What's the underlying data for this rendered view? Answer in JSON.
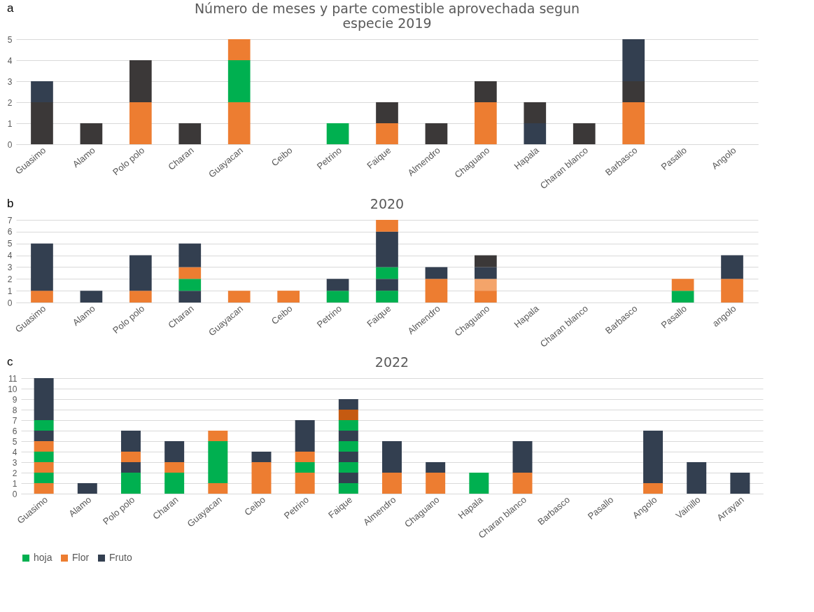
{
  "chart_data": [
    {
      "type": "bar",
      "stacked": true,
      "title": "Número de meses y parte comestible aprovechada segun especie 2019",
      "annotations": [
        "a"
      ],
      "categories": [
        "Guasimo",
        "Alamo",
        "Polo polo",
        "Charan",
        "Guayacan",
        "Ceibo",
        "Petrino",
        "Faique",
        "Almendro",
        "Chaguano",
        "Hapala",
        "Charan blanco",
        "Barbasco",
        "Pasallo",
        "Angolo"
      ],
      "ylim": [
        0,
        5
      ],
      "yticks": [
        0,
        1,
        2,
        3,
        4,
        5
      ],
      "grid": "y",
      "series": [
        {
          "color": "#3b3838",
          "values": [
            2,
            1,
            null,
            1,
            null,
            null,
            null,
            null,
            1,
            null,
            null,
            1,
            null,
            null,
            null
          ]
        },
        {
          "color": "#ed7d31",
          "values": [
            null,
            null,
            2,
            null,
            2,
            null,
            null,
            1,
            null,
            2,
            null,
            null,
            2,
            null,
            null
          ]
        },
        {
          "color": "#00b050",
          "values": [
            null,
            null,
            null,
            null,
            null,
            null,
            1,
            null,
            null,
            null,
            null,
            null,
            null,
            null,
            null
          ]
        },
        {
          "color": "#333f50",
          "values": [
            null,
            null,
            null,
            null,
            null,
            null,
            null,
            null,
            null,
            null,
            1,
            null,
            null,
            null,
            null
          ]
        },
        {
          "color": "#333f50",
          "values": [
            1,
            null,
            null,
            null,
            null,
            null,
            null,
            null,
            null,
            null,
            null,
            null,
            null,
            null,
            null
          ]
        },
        {
          "color": "#3b3838",
          "values": [
            null,
            null,
            2,
            null,
            null,
            null,
            null,
            1,
            null,
            1,
            1,
            null,
            1,
            null,
            null
          ]
        },
        {
          "color": "#00b050",
          "values": [
            null,
            null,
            null,
            null,
            2,
            null,
            null,
            null,
            null,
            null,
            null,
            null,
            null,
            null,
            null
          ]
        },
        {
          "color": "#ed7d31",
          "values": [
            null,
            null,
            null,
            null,
            1,
            null,
            null,
            null,
            null,
            null,
            null,
            null,
            null,
            null,
            null
          ]
        },
        {
          "color": "#333f50",
          "values": [
            null,
            null,
            null,
            null,
            null,
            null,
            null,
            null,
            null,
            null,
            null,
            null,
            2,
            null,
            null
          ]
        }
      ]
    },
    {
      "type": "bar",
      "stacked": true,
      "title": "2020",
      "annotations": [
        "b"
      ],
      "categories": [
        "Guasimo",
        "Alamo",
        "Polo polo",
        "Charan",
        "Guayacan",
        "Ceibo",
        "Petrino",
        "Faique",
        "Almendro",
        "Chaguano",
        "Hapala",
        "Charan blanco",
        "Barbasco",
        "Pasallo",
        "angolo"
      ],
      "ylim": [
        0,
        7
      ],
      "yticks": [
        0,
        1,
        2,
        3,
        4,
        5,
        6,
        7
      ],
      "grid": "y",
      "series": [
        {
          "color": "#ed7d31",
          "values": [
            1,
            null,
            1,
            null,
            1,
            1,
            null,
            null,
            2,
            1,
            null,
            null,
            null,
            null,
            2
          ]
        },
        {
          "color": "#333f50",
          "values": [
            null,
            1,
            null,
            1,
            null,
            null,
            null,
            null,
            null,
            null,
            null,
            null,
            null,
            null,
            null
          ]
        },
        {
          "color": "#00b050",
          "values": [
            null,
            null,
            null,
            null,
            null,
            null,
            1,
            1,
            null,
            null,
            null,
            null,
            null,
            1,
            null
          ]
        },
        {
          "color": "#333f50",
          "values": [
            4,
            null,
            3,
            null,
            null,
            null,
            1,
            1,
            1,
            null,
            null,
            null,
            null,
            null,
            2
          ]
        },
        {
          "color": "#00b050",
          "values": [
            null,
            null,
            null,
            1,
            null,
            null,
            null,
            null,
            null,
            null,
            null,
            null,
            null,
            null,
            null
          ]
        },
        {
          "color": "#f4a46a",
          "values": [
            null,
            null,
            null,
            null,
            null,
            null,
            null,
            null,
            null,
            1,
            null,
            null,
            null,
            null,
            null
          ]
        },
        {
          "color": "#ed7d31",
          "values": [
            null,
            null,
            null,
            null,
            null,
            null,
            null,
            null,
            null,
            null,
            null,
            null,
            null,
            1,
            null
          ]
        },
        {
          "color": "#ed7d31",
          "values": [
            null,
            null,
            null,
            1,
            null,
            null,
            null,
            null,
            null,
            null,
            null,
            null,
            null,
            null,
            null
          ]
        },
        {
          "color": "#00b050",
          "values": [
            null,
            null,
            null,
            null,
            null,
            null,
            null,
            1,
            null,
            null,
            null,
            null,
            null,
            null,
            null
          ]
        },
        {
          "color": "#333f50",
          "values": [
            null,
            null,
            null,
            null,
            null,
            null,
            null,
            null,
            null,
            1,
            null,
            null,
            null,
            null,
            null
          ]
        },
        {
          "color": "#333f50",
          "values": [
            null,
            null,
            null,
            2,
            null,
            null,
            null,
            3,
            null,
            null,
            null,
            null,
            null,
            null,
            null
          ]
        },
        {
          "color": "#3b3838",
          "values": [
            null,
            null,
            null,
            null,
            null,
            null,
            null,
            null,
            null,
            1,
            null,
            null,
            null,
            null,
            null
          ]
        },
        {
          "color": "#ed7d31",
          "values": [
            null,
            null,
            null,
            null,
            null,
            null,
            null,
            1,
            null,
            null,
            null,
            null,
            null,
            null,
            null
          ]
        }
      ]
    },
    {
      "type": "bar",
      "stacked": true,
      "title": "2022",
      "annotations": [
        "c"
      ],
      "legend": "bottom",
      "categories": [
        "Guasimo",
        "Alamo",
        "Polo polo",
        "Charan",
        "Guayacan",
        "Ceibo",
        "Petrino",
        "Faique",
        "Almendro",
        "Chaguano",
        "Hapala",
        "Charan blanco",
        "Barbasco",
        "Pasallo",
        "Angolo",
        "Vainillo",
        "Arrayan"
      ],
      "ylim": [
        0,
        11
      ],
      "yticks": [
        0,
        1,
        2,
        3,
        4,
        5,
        6,
        7,
        8,
        9,
        10,
        11
      ],
      "grid": "y",
      "series": [
        {
          "name": "hoja",
          "color": "#00b050",
          "values": [
            null,
            null,
            2,
            2,
            null,
            null,
            null,
            1,
            null,
            null,
            2,
            null,
            null,
            null,
            null,
            null,
            null
          ]
        },
        {
          "name": "Flor",
          "color": "#ed7d31",
          "values": [
            1,
            null,
            null,
            null,
            1,
            3,
            2,
            null,
            2,
            2,
            null,
            2,
            null,
            null,
            1,
            null,
            null
          ]
        },
        {
          "name": "Fruto",
          "color": "#333f50",
          "values": [
            null,
            1,
            null,
            null,
            null,
            null,
            null,
            null,
            null,
            null,
            null,
            null,
            null,
            null,
            null,
            3,
            2
          ]
        },
        {
          "color": "#00b050",
          "values": [
            1,
            null,
            null,
            null,
            4,
            null,
            1,
            null,
            null,
            null,
            null,
            null,
            null,
            null,
            null,
            null,
            null
          ]
        },
        {
          "color": "#333f50",
          "values": [
            null,
            null,
            1,
            null,
            null,
            1,
            null,
            1,
            3,
            1,
            null,
            3,
            null,
            null,
            5,
            null,
            null
          ]
        },
        {
          "color": "#ed7d31",
          "values": [
            null,
            null,
            null,
            1,
            null,
            null,
            null,
            null,
            null,
            null,
            null,
            null,
            null,
            null,
            null,
            null,
            null
          ]
        },
        {
          "color": "#ed7d31",
          "values": [
            1,
            null,
            1,
            null,
            1,
            null,
            1,
            null,
            null,
            null,
            null,
            null,
            null,
            null,
            null,
            null,
            null
          ]
        },
        {
          "color": "#333f50",
          "values": [
            null,
            null,
            null,
            2,
            null,
            null,
            null,
            null,
            null,
            null,
            null,
            null,
            null,
            null,
            null,
            null,
            null
          ]
        },
        {
          "color": "#00b050",
          "values": [
            null,
            null,
            null,
            null,
            null,
            null,
            null,
            1,
            null,
            null,
            null,
            null,
            null,
            null,
            null,
            null,
            null
          ]
        },
        {
          "color": "#00b050",
          "values": [
            1,
            null,
            null,
            null,
            null,
            null,
            null,
            null,
            null,
            null,
            null,
            null,
            null,
            null,
            null,
            null,
            null
          ]
        },
        {
          "color": "#333f50",
          "values": [
            null,
            null,
            2,
            null,
            null,
            null,
            3,
            1,
            null,
            null,
            null,
            null,
            null,
            null,
            null,
            null,
            null
          ]
        },
        {
          "color": "#ed7d31",
          "values": [
            1,
            null,
            null,
            null,
            null,
            null,
            null,
            null,
            null,
            null,
            null,
            null,
            null,
            null,
            null,
            null,
            null
          ]
        },
        {
          "color": "#00b050",
          "values": [
            null,
            null,
            null,
            null,
            null,
            null,
            null,
            1,
            null,
            null,
            null,
            null,
            null,
            null,
            null,
            null,
            null
          ]
        },
        {
          "color": "#333f50",
          "values": [
            1,
            null,
            null,
            null,
            null,
            null,
            null,
            1,
            null,
            null,
            null,
            null,
            null,
            null,
            null,
            null,
            null
          ]
        },
        {
          "color": "#00b050",
          "values": [
            1,
            null,
            null,
            null,
            null,
            null,
            null,
            1,
            null,
            null,
            null,
            null,
            null,
            null,
            null,
            null,
            null
          ]
        },
        {
          "color": "#333f50",
          "values": [
            4,
            null,
            null,
            null,
            null,
            null,
            null,
            null,
            null,
            null,
            null,
            null,
            null,
            null,
            null,
            null,
            null
          ]
        },
        {
          "color": "#c55a11",
          "values": [
            null,
            null,
            null,
            null,
            null,
            null,
            null,
            1,
            null,
            null,
            null,
            null,
            null,
            null,
            null,
            null,
            null
          ]
        },
        {
          "color": "#333f50",
          "values": [
            null,
            null,
            null,
            null,
            null,
            null,
            null,
            1,
            null,
            null,
            null,
            null,
            null,
            null,
            null,
            null,
            null
          ]
        }
      ]
    }
  ]
}
